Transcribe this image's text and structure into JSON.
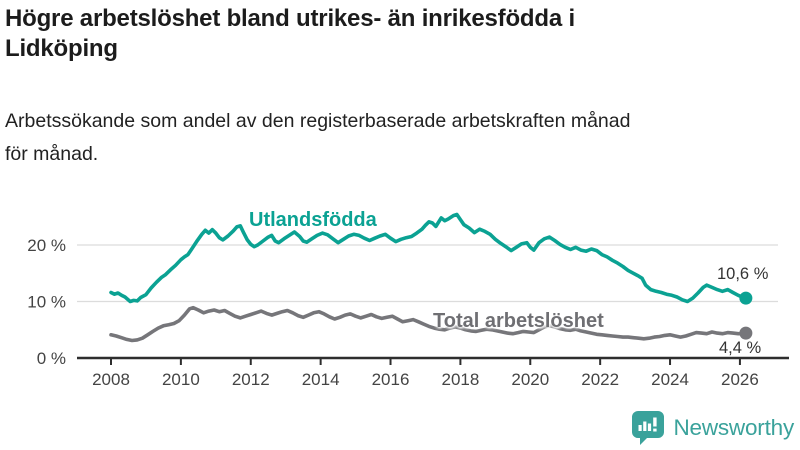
{
  "header": {
    "title": "Högre arbetslöshet bland utrikes- än inrikesfödda i\nLidköping",
    "subtitle": "Arbetssökande som andel av den registerbaserade arbetskraften månad\nför månad."
  },
  "chart_data": {
    "type": "line",
    "title": "Högre arbetslöshet bland utrikes- än inrikesfödda i Lidköping",
    "subtitle": "Arbetssökande som andel av den registerbaserade arbetskraften månad för månad.",
    "xlabel": "",
    "ylabel": "",
    "grid": true,
    "xlim": [
      2007.0,
      2027.4
    ],
    "ylim": [
      0,
      27
    ],
    "x_ticks": [
      2008,
      2010,
      2012,
      2014,
      2016,
      2018,
      2020,
      2022,
      2024,
      2026
    ],
    "x_tick_labels": [
      "2008",
      "2010",
      "2012",
      "2014",
      "2016",
      "2018",
      "2020",
      "2022",
      "2024",
      "2026"
    ],
    "y_ticks": [
      0,
      10,
      20
    ],
    "y_tick_labels": [
      "0 %",
      "10 %",
      "20 %"
    ],
    "grid_color": "#dcdcdc",
    "axis_color": "#2e2e2e",
    "tick_label_color": "#444444",
    "series": [
      {
        "name": "Utlandsfödda",
        "color": "#0ba293",
        "end_label": "10,6 %",
        "end_value": 10.6,
        "points": [
          [
            2008.0,
            11.6
          ],
          [
            2008.1,
            11.3
          ],
          [
            2008.2,
            11.5
          ],
          [
            2008.3,
            11.1
          ],
          [
            2008.4,
            10.8
          ],
          [
            2008.55,
            10.0
          ],
          [
            2008.65,
            10.2
          ],
          [
            2008.75,
            10.1
          ],
          [
            2008.85,
            10.7
          ],
          [
            2009.0,
            11.2
          ],
          [
            2009.15,
            12.4
          ],
          [
            2009.3,
            13.4
          ],
          [
            2009.45,
            14.3
          ],
          [
            2009.55,
            14.7
          ],
          [
            2009.7,
            15.6
          ],
          [
            2009.85,
            16.4
          ],
          [
            2010.0,
            17.4
          ],
          [
            2010.1,
            17.9
          ],
          [
            2010.2,
            18.3
          ],
          [
            2010.3,
            19.2
          ],
          [
            2010.45,
            20.6
          ],
          [
            2010.6,
            21.9
          ],
          [
            2010.7,
            22.6
          ],
          [
            2010.8,
            22.1
          ],
          [
            2010.9,
            22.7
          ],
          [
            2011.0,
            22.1
          ],
          [
            2011.1,
            21.3
          ],
          [
            2011.2,
            20.9
          ],
          [
            2011.35,
            21.6
          ],
          [
            2011.5,
            22.5
          ],
          [
            2011.6,
            23.2
          ],
          [
            2011.7,
            23.4
          ],
          [
            2011.8,
            22.1
          ],
          [
            2011.9,
            20.9
          ],
          [
            2012.0,
            20.1
          ],
          [
            2012.1,
            19.7
          ],
          [
            2012.2,
            20.0
          ],
          [
            2012.35,
            20.7
          ],
          [
            2012.5,
            21.4
          ],
          [
            2012.6,
            21.7
          ],
          [
            2012.7,
            20.7
          ],
          [
            2012.8,
            20.4
          ],
          [
            2012.95,
            21.1
          ],
          [
            2013.1,
            21.7
          ],
          [
            2013.25,
            22.3
          ],
          [
            2013.4,
            21.5
          ],
          [
            2013.5,
            20.7
          ],
          [
            2013.6,
            20.5
          ],
          [
            2013.75,
            21.1
          ],
          [
            2013.9,
            21.7
          ],
          [
            2014.05,
            22.1
          ],
          [
            2014.2,
            21.8
          ],
          [
            2014.35,
            21.1
          ],
          [
            2014.5,
            20.4
          ],
          [
            2014.65,
            21.0
          ],
          [
            2014.8,
            21.6
          ],
          [
            2014.95,
            21.9
          ],
          [
            2015.1,
            21.7
          ],
          [
            2015.25,
            21.2
          ],
          [
            2015.4,
            20.8
          ],
          [
            2015.55,
            21.2
          ],
          [
            2015.7,
            21.6
          ],
          [
            2015.85,
            21.9
          ],
          [
            2016.0,
            21.2
          ],
          [
            2016.15,
            20.6
          ],
          [
            2016.3,
            21.0
          ],
          [
            2016.45,
            21.3
          ],
          [
            2016.6,
            21.5
          ],
          [
            2016.75,
            22.1
          ],
          [
            2016.9,
            22.8
          ],
          [
            2017.0,
            23.5
          ],
          [
            2017.1,
            24.1
          ],
          [
            2017.2,
            23.9
          ],
          [
            2017.3,
            23.3
          ],
          [
            2017.45,
            24.8
          ],
          [
            2017.55,
            24.3
          ],
          [
            2017.65,
            24.6
          ],
          [
            2017.8,
            25.2
          ],
          [
            2017.9,
            25.4
          ],
          [
            2018.0,
            24.5
          ],
          [
            2018.1,
            23.6
          ],
          [
            2018.25,
            23.0
          ],
          [
            2018.4,
            22.2
          ],
          [
            2018.55,
            22.8
          ],
          [
            2018.7,
            22.4
          ],
          [
            2018.85,
            21.9
          ],
          [
            2019.0,
            21.0
          ],
          [
            2019.15,
            20.3
          ],
          [
            2019.3,
            19.7
          ],
          [
            2019.45,
            19.0
          ],
          [
            2019.6,
            19.6
          ],
          [
            2019.75,
            20.2
          ],
          [
            2019.9,
            20.4
          ],
          [
            2020.0,
            19.6
          ],
          [
            2020.1,
            19.1
          ],
          [
            2020.25,
            20.4
          ],
          [
            2020.4,
            21.1
          ],
          [
            2020.55,
            21.4
          ],
          [
            2020.7,
            20.8
          ],
          [
            2020.85,
            20.1
          ],
          [
            2021.0,
            19.6
          ],
          [
            2021.15,
            19.2
          ],
          [
            2021.3,
            19.6
          ],
          [
            2021.45,
            19.1
          ],
          [
            2021.6,
            18.9
          ],
          [
            2021.75,
            19.3
          ],
          [
            2021.9,
            19.0
          ],
          [
            2022.05,
            18.3
          ],
          [
            2022.2,
            17.9
          ],
          [
            2022.35,
            17.3
          ],
          [
            2022.5,
            16.8
          ],
          [
            2022.65,
            16.2
          ],
          [
            2022.8,
            15.5
          ],
          [
            2022.95,
            15.0
          ],
          [
            2023.1,
            14.5
          ],
          [
            2023.2,
            14.1
          ],
          [
            2023.3,
            12.9
          ],
          [
            2023.45,
            12.1
          ],
          [
            2023.6,
            11.8
          ],
          [
            2023.75,
            11.6
          ],
          [
            2023.9,
            11.3
          ],
          [
            2024.05,
            11.1
          ],
          [
            2024.2,
            10.8
          ],
          [
            2024.35,
            10.3
          ],
          [
            2024.5,
            10.0
          ],
          [
            2024.65,
            10.6
          ],
          [
            2024.8,
            11.5
          ],
          [
            2024.95,
            12.5
          ],
          [
            2025.05,
            12.9
          ],
          [
            2025.2,
            12.5
          ],
          [
            2025.35,
            12.1
          ],
          [
            2025.5,
            11.8
          ],
          [
            2025.65,
            12.1
          ],
          [
            2025.8,
            11.6
          ],
          [
            2025.95,
            11.1
          ],
          [
            2026.1,
            10.7
          ],
          [
            2026.17,
            10.6
          ]
        ]
      },
      {
        "name": "Total arbetslöshet",
        "color": "#76767a",
        "end_label": "4,4 %",
        "end_value": 4.4,
        "points": [
          [
            2008.0,
            4.1
          ],
          [
            2008.15,
            3.9
          ],
          [
            2008.3,
            3.6
          ],
          [
            2008.45,
            3.3
          ],
          [
            2008.6,
            3.1
          ],
          [
            2008.75,
            3.2
          ],
          [
            2008.9,
            3.5
          ],
          [
            2009.05,
            4.1
          ],
          [
            2009.2,
            4.7
          ],
          [
            2009.35,
            5.3
          ],
          [
            2009.5,
            5.7
          ],
          [
            2009.65,
            5.9
          ],
          [
            2009.8,
            6.1
          ],
          [
            2009.95,
            6.6
          ],
          [
            2010.1,
            7.6
          ],
          [
            2010.25,
            8.7
          ],
          [
            2010.35,
            8.9
          ],
          [
            2010.5,
            8.5
          ],
          [
            2010.65,
            8.0
          ],
          [
            2010.8,
            8.3
          ],
          [
            2010.95,
            8.5
          ],
          [
            2011.1,
            8.2
          ],
          [
            2011.25,
            8.4
          ],
          [
            2011.4,
            7.9
          ],
          [
            2011.55,
            7.4
          ],
          [
            2011.7,
            7.1
          ],
          [
            2011.85,
            7.4
          ],
          [
            2012.0,
            7.7
          ],
          [
            2012.15,
            8.0
          ],
          [
            2012.3,
            8.3
          ],
          [
            2012.45,
            7.9
          ],
          [
            2012.6,
            7.6
          ],
          [
            2012.75,
            7.9
          ],
          [
            2012.9,
            8.2
          ],
          [
            2013.05,
            8.4
          ],
          [
            2013.2,
            8.0
          ],
          [
            2013.35,
            7.5
          ],
          [
            2013.5,
            7.2
          ],
          [
            2013.65,
            7.6
          ],
          [
            2013.8,
            8.0
          ],
          [
            2013.95,
            8.2
          ],
          [
            2014.1,
            7.8
          ],
          [
            2014.25,
            7.3
          ],
          [
            2014.4,
            6.9
          ],
          [
            2014.55,
            7.2
          ],
          [
            2014.7,
            7.6
          ],
          [
            2014.85,
            7.8
          ],
          [
            2015.0,
            7.4
          ],
          [
            2015.15,
            7.1
          ],
          [
            2015.3,
            7.4
          ],
          [
            2015.45,
            7.7
          ],
          [
            2015.6,
            7.3
          ],
          [
            2015.75,
            7.0
          ],
          [
            2015.9,
            7.2
          ],
          [
            2016.05,
            7.4
          ],
          [
            2016.2,
            6.9
          ],
          [
            2016.35,
            6.4
          ],
          [
            2016.5,
            6.6
          ],
          [
            2016.65,
            6.8
          ],
          [
            2016.8,
            6.4
          ],
          [
            2016.95,
            6.0
          ],
          [
            2017.1,
            5.6
          ],
          [
            2017.25,
            5.3
          ],
          [
            2017.4,
            5.1
          ],
          [
            2017.55,
            5.0
          ],
          [
            2017.7,
            5.3
          ],
          [
            2017.85,
            5.5
          ],
          [
            2018.0,
            5.3
          ],
          [
            2018.15,
            5.0
          ],
          [
            2018.3,
            4.8
          ],
          [
            2018.45,
            4.7
          ],
          [
            2018.6,
            4.9
          ],
          [
            2018.75,
            5.1
          ],
          [
            2018.9,
            5.0
          ],
          [
            2019.05,
            4.8
          ],
          [
            2019.2,
            4.6
          ],
          [
            2019.35,
            4.4
          ],
          [
            2019.5,
            4.3
          ],
          [
            2019.65,
            4.5
          ],
          [
            2019.8,
            4.7
          ],
          [
            2019.95,
            4.6
          ],
          [
            2020.1,
            4.5
          ],
          [
            2020.25,
            5.0
          ],
          [
            2020.4,
            5.5
          ],
          [
            2020.55,
            5.7
          ],
          [
            2020.7,
            5.5
          ],
          [
            2020.85,
            5.2
          ],
          [
            2021.0,
            5.0
          ],
          [
            2021.15,
            4.9
          ],
          [
            2021.3,
            5.1
          ],
          [
            2021.45,
            4.8
          ],
          [
            2021.6,
            4.6
          ],
          [
            2021.75,
            4.4
          ],
          [
            2021.9,
            4.2
          ],
          [
            2022.05,
            4.1
          ],
          [
            2022.2,
            4.0
          ],
          [
            2022.35,
            3.9
          ],
          [
            2022.5,
            3.8
          ],
          [
            2022.65,
            3.7
          ],
          [
            2022.8,
            3.7
          ],
          [
            2022.95,
            3.6
          ],
          [
            2023.1,
            3.5
          ],
          [
            2023.25,
            3.4
          ],
          [
            2023.4,
            3.5
          ],
          [
            2023.55,
            3.7
          ],
          [
            2023.7,
            3.8
          ],
          [
            2023.85,
            4.0
          ],
          [
            2024.0,
            4.1
          ],
          [
            2024.15,
            3.9
          ],
          [
            2024.3,
            3.7
          ],
          [
            2024.45,
            3.9
          ],
          [
            2024.6,
            4.2
          ],
          [
            2024.75,
            4.5
          ],
          [
            2024.9,
            4.4
          ],
          [
            2025.05,
            4.3
          ],
          [
            2025.2,
            4.6
          ],
          [
            2025.35,
            4.4
          ],
          [
            2025.5,
            4.3
          ],
          [
            2025.65,
            4.5
          ],
          [
            2025.8,
            4.4
          ],
          [
            2025.95,
            4.3
          ],
          [
            2026.1,
            4.3
          ],
          [
            2026.17,
            4.4
          ]
        ]
      }
    ],
    "legend_position": "inline-labels"
  },
  "logo": {
    "text": "Newsworthy",
    "color": "#3aa29b",
    "icon": "newsworthy-speech-bubble-bar-chart-icon"
  }
}
